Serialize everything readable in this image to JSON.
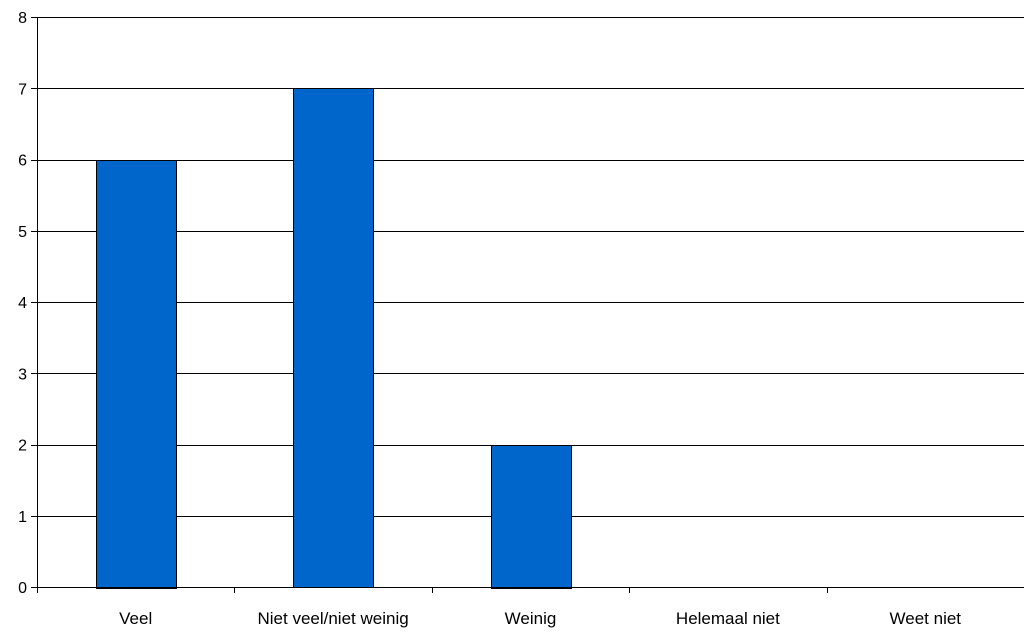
{
  "chart_data": {
    "type": "bar",
    "categories": [
      "Veel",
      "Niet veel/niet weinig",
      "Weinig",
      "Helemaal niet",
      "Weet niet"
    ],
    "values": [
      6,
      7,
      2,
      0,
      0
    ],
    "y_ticks": [
      "0",
      "1",
      "2",
      "3",
      "4",
      "5",
      "6",
      "7",
      "8"
    ],
    "ylim": [
      0,
      8
    ],
    "title": "",
    "xlabel": "",
    "ylabel": "",
    "grid": true,
    "legend": "none",
    "colors": {
      "bar": "#0066cc",
      "bar_outline": "#000000",
      "grid": "#000000",
      "axis": "#000000"
    }
  }
}
